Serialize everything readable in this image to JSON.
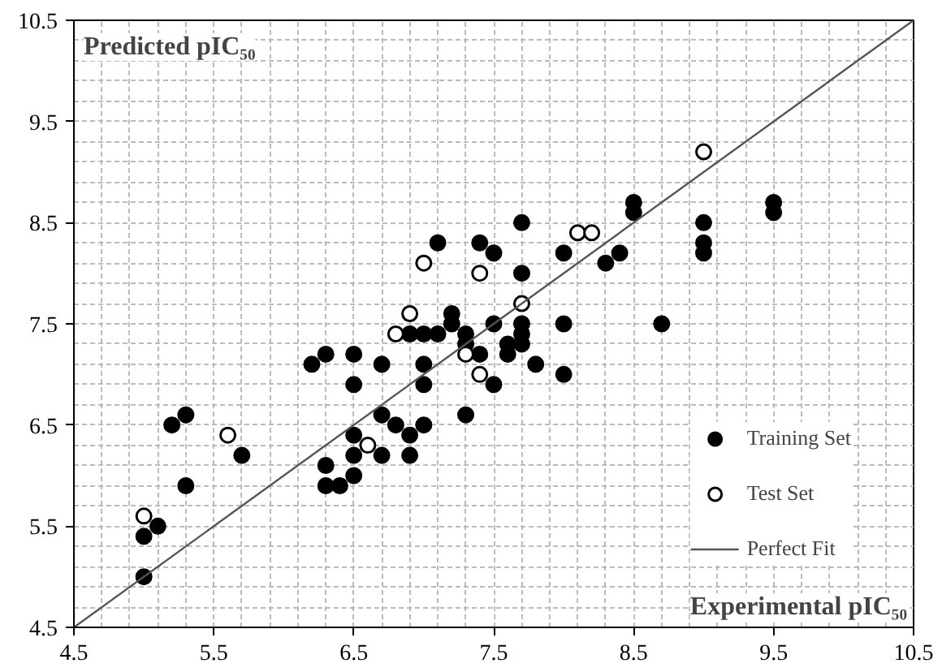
{
  "chart_data": {
    "type": "scatter",
    "xlabel": "Experimental pIC₅₀",
    "ylabel": "Predicted pIC₅₀",
    "xlim": [
      4.5,
      10.5
    ],
    "ylim": [
      4.5,
      10.5
    ],
    "xticks": [
      4.5,
      5.5,
      6.5,
      7.5,
      8.5,
      9.5,
      10.5
    ],
    "yticks": [
      4.5,
      5.5,
      6.5,
      7.5,
      8.5,
      9.5,
      10.5
    ],
    "grid": true,
    "legend": "bottom right",
    "marker": "circle",
    "series": [
      {
        "name": "Training Set",
        "color": "#000000",
        "x": [
          5.0,
          5.0,
          5.1,
          5.2,
          5.3,
          5.3,
          5.7,
          6.3,
          6.3,
          6.4,
          6.5,
          6.5,
          6.5,
          6.7,
          6.7,
          6.8,
          6.9,
          6.9,
          7.0,
          7.3,
          6.2,
          6.3,
          6.5,
          6.5,
          6.7,
          6.9,
          7.0,
          7.1,
          7.0,
          7.0,
          7.1,
          7.2,
          7.2,
          7.3,
          7.3,
          7.4,
          7.4,
          7.5,
          7.5,
          7.5,
          7.6,
          7.6,
          7.7,
          7.7,
          7.7,
          7.7,
          7.7,
          7.8,
          8.0,
          8.0,
          8.0,
          8.3,
          8.4,
          8.5,
          8.5,
          9.0,
          9.0,
          9.0,
          9.5,
          9.5,
          8.7
        ],
        "values": [
          5.0,
          5.4,
          5.5,
          6.5,
          6.6,
          5.9,
          6.2,
          6.1,
          5.9,
          5.9,
          6.0,
          6.2,
          6.4,
          6.2,
          6.6,
          6.5,
          6.4,
          6.2,
          6.5,
          6.6,
          7.1,
          7.2,
          7.2,
          6.9,
          7.1,
          7.4,
          7.4,
          7.4,
          7.1,
          6.9,
          8.3,
          7.6,
          7.5,
          7.4,
          7.3,
          7.2,
          8.3,
          8.2,
          7.5,
          6.9,
          7.3,
          7.2,
          8.5,
          8.0,
          7.5,
          7.4,
          7.3,
          7.1,
          7.5,
          7.0,
          8.2,
          8.1,
          8.2,
          8.7,
          8.6,
          8.5,
          8.3,
          8.2,
          8.7,
          8.6,
          7.5
        ]
      },
      {
        "name": "Test Set",
        "color": "#ffffff",
        "x": [
          5.0,
          5.6,
          6.6,
          6.8,
          6.9,
          7.0,
          7.3,
          7.4,
          7.4,
          7.7,
          8.1,
          8.2,
          9.0
        ],
        "values": [
          5.6,
          6.4,
          6.3,
          7.4,
          7.6,
          8.1,
          7.2,
          7.0,
          8.0,
          7.7,
          8.4,
          8.4,
          9.2
        ]
      },
      {
        "name": "Perfect Fit",
        "type": "line",
        "color": "#555555",
        "marker": "none",
        "x": [
          4.5,
          10.5
        ],
        "values": [
          4.5,
          10.5
        ]
      }
    ]
  }
}
